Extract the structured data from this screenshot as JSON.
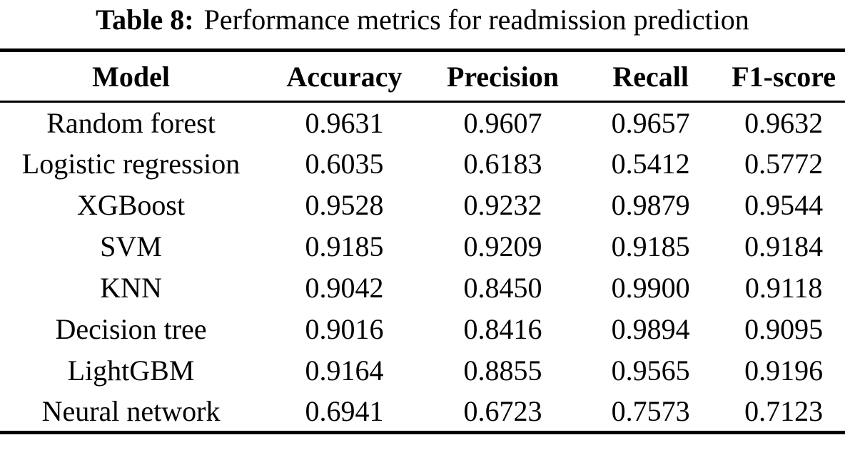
{
  "caption": {
    "label": "Table 8:",
    "text": "Performance metrics for readmission prediction"
  },
  "table": {
    "headers": [
      "Model",
      "Accuracy",
      "Precision",
      "Recall",
      "F1-score"
    ],
    "rows": [
      {
        "cells": [
          "Random forest",
          "0.9631",
          "0.9607",
          "0.9657",
          "0.9632"
        ]
      },
      {
        "cells": [
          "Logistic regression",
          "0.6035",
          "0.6183",
          "0.5412",
          "0.5772"
        ]
      },
      {
        "cells": [
          "XGBoost",
          "0.9528",
          "0.9232",
          "0.9879",
          "0.9544"
        ]
      },
      {
        "cells": [
          "SVM",
          "0.9185",
          "0.9209",
          "0.9185",
          "0.9184"
        ]
      },
      {
        "cells": [
          "KNN",
          "0.9042",
          "0.8450",
          "0.9900",
          "0.9118"
        ]
      },
      {
        "cells": [
          "Decision tree",
          "0.9016",
          "0.8416",
          "0.9894",
          "0.9095"
        ]
      },
      {
        "cells": [
          "LightGBM",
          "0.9164",
          "0.8855",
          "0.9565",
          "0.9196"
        ]
      },
      {
        "cells": [
          "Neural network",
          "0.6941",
          "0.6723",
          "0.7573",
          "0.7123"
        ]
      }
    ]
  }
}
